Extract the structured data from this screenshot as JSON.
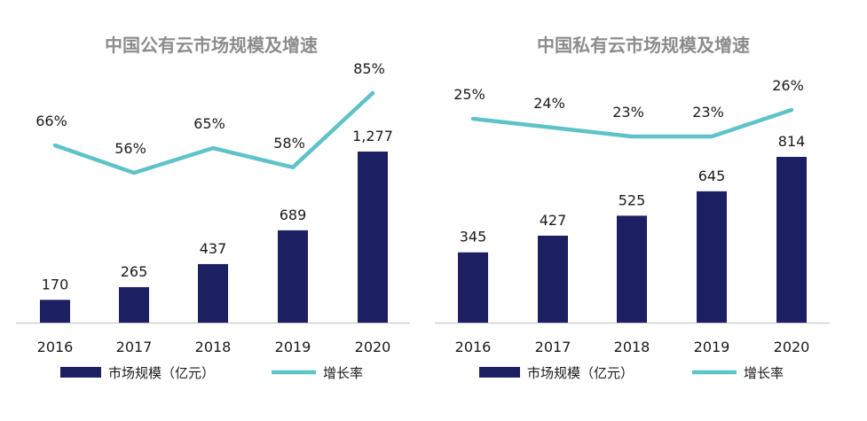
{
  "colors": {
    "bar": "#1d1f63",
    "line": "#5ec3c8",
    "title": "#8c8c8c",
    "label": "#1a1a1a",
    "axis": "#bfbfbf"
  },
  "chart_data": [
    {
      "type": "bar",
      "title": "中国公有云市场规模及增速",
      "categories": [
        "2016",
        "2017",
        "2018",
        "2019",
        "2020"
      ],
      "series": [
        {
          "name": "市场规模（亿元）",
          "type": "bar",
          "values": [
            170,
            265,
            437,
            689,
            1277
          ],
          "labels": [
            "170",
            "265",
            "437",
            "689",
            "1,277"
          ]
        },
        {
          "name": "增长率",
          "type": "line",
          "values": [
            66,
            56,
            65,
            58,
            85
          ],
          "labels": [
            "66%",
            "56%",
            "65%",
            "58%",
            "85%"
          ]
        }
      ],
      "legend_position": "bottom"
    },
    {
      "type": "bar",
      "title": "中国私有云市场规模及增速",
      "categories": [
        "2016",
        "2017",
        "2018",
        "2019",
        "2020"
      ],
      "series": [
        {
          "name": "市场规模（亿元）",
          "type": "bar",
          "values": [
            345,
            427,
            525,
            645,
            814
          ],
          "labels": [
            "345",
            "427",
            "525",
            "645",
            "814"
          ]
        },
        {
          "name": "增长率",
          "type": "line",
          "values": [
            25,
            24,
            23,
            23,
            26
          ],
          "labels": [
            "25%",
            "24%",
            "23%",
            "23%",
            "26%"
          ]
        }
      ],
      "legend_position": "bottom"
    }
  ]
}
